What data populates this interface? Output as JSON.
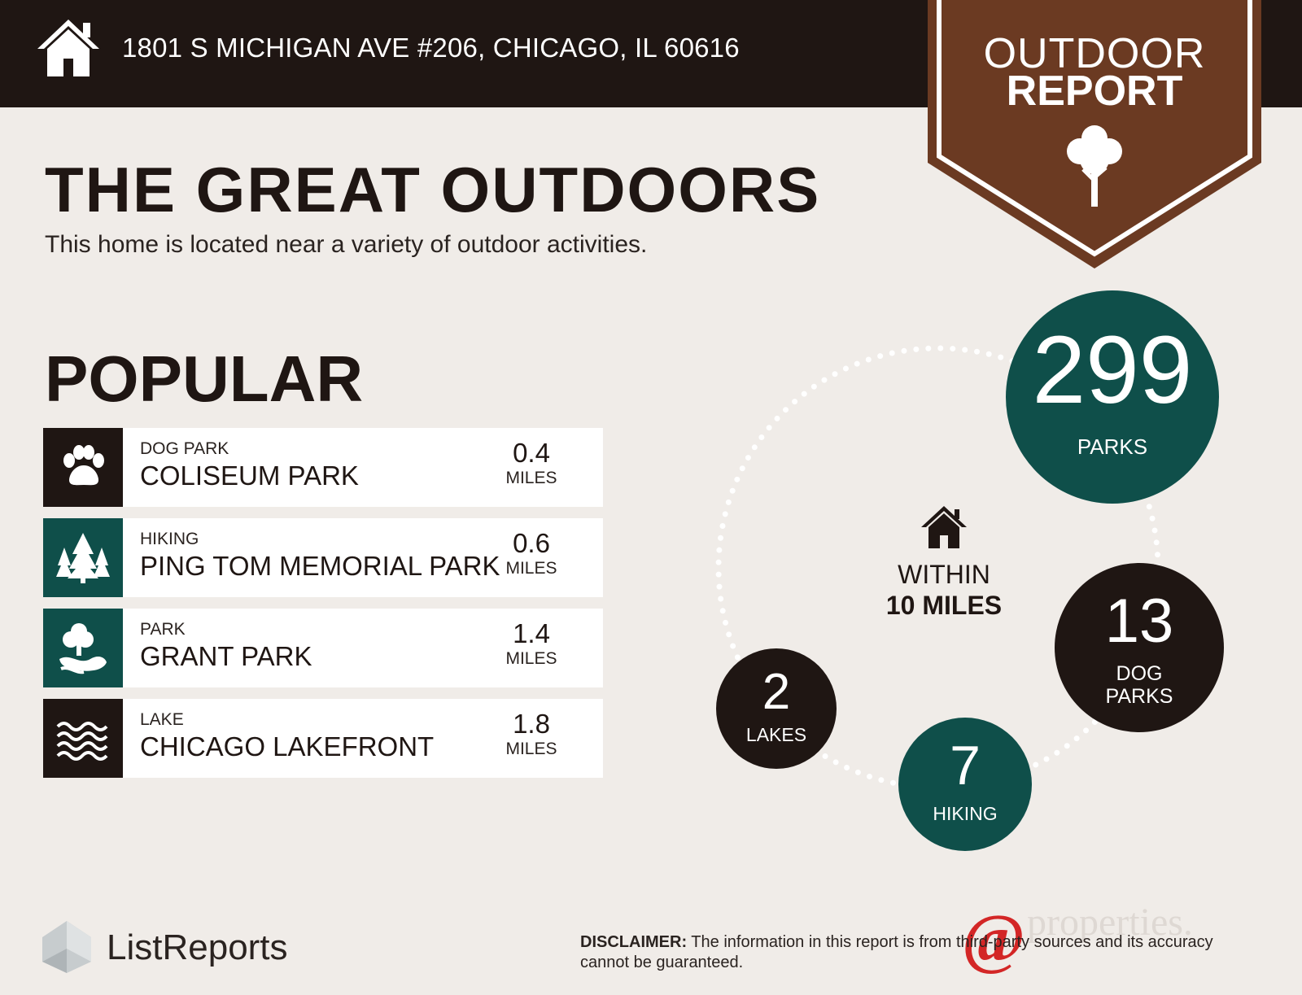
{
  "header": {
    "address": "1801 S MICHIGAN AVE #206, CHICAGO, IL 60616"
  },
  "badge": {
    "line1": "OUTDOOR",
    "line2": "REPORT"
  },
  "main": {
    "title": "THE GREAT OUTDOORS",
    "subtitle": "This home is located near a variety of outdoor activities.",
    "popular_heading": "POPULAR"
  },
  "popular": [
    {
      "category": "DOG PARK",
      "name": "COLISEUM PARK",
      "distance": "0.4",
      "unit": "MILES",
      "icon": "paw-icon",
      "color": "#1f1613"
    },
    {
      "category": "HIKING",
      "name": "PING TOM MEMORIAL PARK",
      "distance": "0.6",
      "unit": "MILES",
      "icon": "pine-trees-icon",
      "color": "#0f4f4a"
    },
    {
      "category": "PARK",
      "name": "GRANT PARK",
      "distance": "1.4",
      "unit": "MILES",
      "icon": "park-tree-icon",
      "color": "#0f4f4a"
    },
    {
      "category": "LAKE",
      "name": "CHICAGO LAKEFRONT",
      "distance": "1.8",
      "unit": "MILES",
      "icon": "waves-icon",
      "color": "#1f1613"
    }
  ],
  "summary": {
    "within_line1": "WITHIN",
    "within_line2": "10 MILES",
    "parks": {
      "count": "299",
      "label": "PARKS"
    },
    "dog_parks": {
      "count": "13",
      "label1": "DOG",
      "label2": "PARKS"
    },
    "hiking": {
      "count": "7",
      "label": "HIKING"
    },
    "lakes": {
      "count": "2",
      "label": "LAKES"
    }
  },
  "footer": {
    "brand": "ListReports",
    "disclaimer_label": "DISCLAIMER:",
    "disclaimer_text": " The information in this report is from third-party sources and its accuracy cannot be guaranteed.",
    "partner_at": "@",
    "partner_word": "properties."
  },
  "colors": {
    "dark": "#1f1613",
    "teal": "#0f4f4a",
    "brown": "#6b3a22",
    "background": "#f0ece8"
  }
}
